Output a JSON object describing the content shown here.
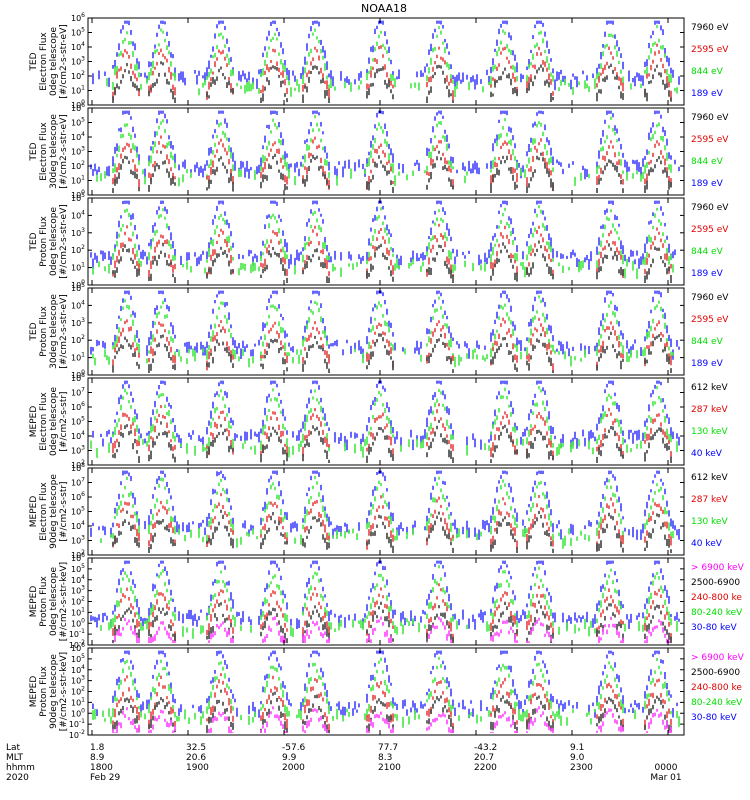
{
  "title": "NOAA18",
  "colors": {
    "black": "#000000",
    "red": "#e00000",
    "green": "#00e000",
    "blue": "#0000ff",
    "magenta": "#ff00ff",
    "frame": "#000000"
  },
  "chart_data": [
    {
      "type": "line",
      "ylabel": [
        "TED",
        "Electron Flux",
        "0deg telescope",
        "[#/cm2-s-str-eV]"
      ],
      "ylim_exp": [
        0,
        6
      ],
      "legend": [
        {
          "text": "7960 eV",
          "color": "black"
        },
        {
          "text": "2595 eV",
          "color": "red"
        },
        {
          "text": "844 eV",
          "color": "green"
        },
        {
          "text": "189 eV",
          "color": "blue"
        }
      ]
    },
    {
      "type": "line",
      "ylabel": [
        "TED",
        "Electron Flux",
        "30deg telescope",
        "[#/cm2-s-str-eV]"
      ],
      "ylim_exp": [
        0,
        6
      ],
      "legend": [
        {
          "text": "7960 eV",
          "color": "black"
        },
        {
          "text": "2595 eV",
          "color": "red"
        },
        {
          "text": "844 eV",
          "color": "green"
        },
        {
          "text": "189 eV",
          "color": "blue"
        }
      ]
    },
    {
      "type": "line",
      "ylabel": [
        "TED",
        "Proton Flux",
        "0deg telescope",
        "[#/cm2-s-str-eV]"
      ],
      "ylim_exp": [
        0,
        5
      ],
      "legend": [
        {
          "text": "7960 eV",
          "color": "black"
        },
        {
          "text": "2595 eV",
          "color": "red"
        },
        {
          "text": "844 eV",
          "color": "green"
        },
        {
          "text": "189 eV",
          "color": "blue"
        }
      ]
    },
    {
      "type": "line",
      "ylabel": [
        "TED",
        "Proton Flux",
        "30deg telescope",
        "[#/cm2-s-str-eV]"
      ],
      "ylim_exp": [
        0,
        5
      ],
      "legend": [
        {
          "text": "7960 eV",
          "color": "black"
        },
        {
          "text": "2595 eV",
          "color": "red"
        },
        {
          "text": "844 eV",
          "color": "green"
        },
        {
          "text": "189 eV",
          "color": "blue"
        }
      ]
    },
    {
      "type": "line",
      "ylabel": [
        "MEPED",
        "Electron Flux",
        "0deg telescope",
        "[#/cm2-s-str]"
      ],
      "ylim_exp": [
        2,
        8
      ],
      "legend": [
        {
          "text": "612 keV",
          "color": "black"
        },
        {
          "text": "287 keV",
          "color": "red"
        },
        {
          "text": "130 keV",
          "color": "green"
        },
        {
          "text": "40 keV",
          "color": "blue"
        }
      ]
    },
    {
      "type": "line",
      "ylabel": [
        "MEPED",
        "Electron Flux",
        "90deg telescope",
        "[#/cm2-s-str]"
      ],
      "ylim_exp": [
        2,
        8
      ],
      "legend": [
        {
          "text": "612 keV",
          "color": "black"
        },
        {
          "text": "287 keV",
          "color": "red"
        },
        {
          "text": "130 keV",
          "color": "green"
        },
        {
          "text": "40 keV",
          "color": "blue"
        }
      ]
    },
    {
      "type": "line",
      "ylabel": [
        "MEPED",
        "Proton Flux",
        "0deg telescope",
        "[#/cm2-s-str-keV]"
      ],
      "ylim_exp": [
        -2,
        6
      ],
      "legend": [
        {
          "text": "> 6900 keV",
          "color": "magenta"
        },
        {
          "text": "2500-6900",
          "color": "black"
        },
        {
          "text": "240-800 ke",
          "color": "red"
        },
        {
          "text": "80-240 keV",
          "color": "green"
        },
        {
          "text": "30-80 keV",
          "color": "blue"
        }
      ]
    },
    {
      "type": "line",
      "ylabel": [
        "MEPED",
        "Proton Flux",
        "90deg telescope",
        "[#/cm2-s-str-keV]"
      ],
      "ylim_exp": [
        -2,
        6
      ],
      "legend": [
        {
          "text": "> 6900 keV",
          "color": "magenta"
        },
        {
          "text": "2500-6900",
          "color": "black"
        },
        {
          "text": "240-800 ke",
          "color": "red"
        },
        {
          "text": "80-240 keV",
          "color": "green"
        },
        {
          "text": "30-80 keV",
          "color": "blue"
        }
      ]
    }
  ],
  "footer": {
    "row_labels": [
      "Lat",
      "MLT",
      "hhmm",
      "2020"
    ],
    "ticks": [
      {
        "lat": "1.8",
        "mlt": "8.9",
        "hhmm": "1800",
        "date": "Feb 29"
      },
      {
        "lat": "32.5",
        "mlt": "20.6",
        "hhmm": "1900",
        "date": ""
      },
      {
        "lat": "-57.6",
        "mlt": "9.9",
        "hhmm": "2000",
        "date": ""
      },
      {
        "lat": "77.7",
        "mlt": "8.3",
        "hhmm": "2100",
        "date": ""
      },
      {
        "lat": "-43.2",
        "mlt": "20.7",
        "hhmm": "2200",
        "date": ""
      },
      {
        "lat": "9.1",
        "mlt": "9.0",
        "hhmm": "2300",
        "date": ""
      },
      {
        "lat": "",
        "mlt": "",
        "hhmm": "0000",
        "date": "Mar 01"
      }
    ]
  }
}
